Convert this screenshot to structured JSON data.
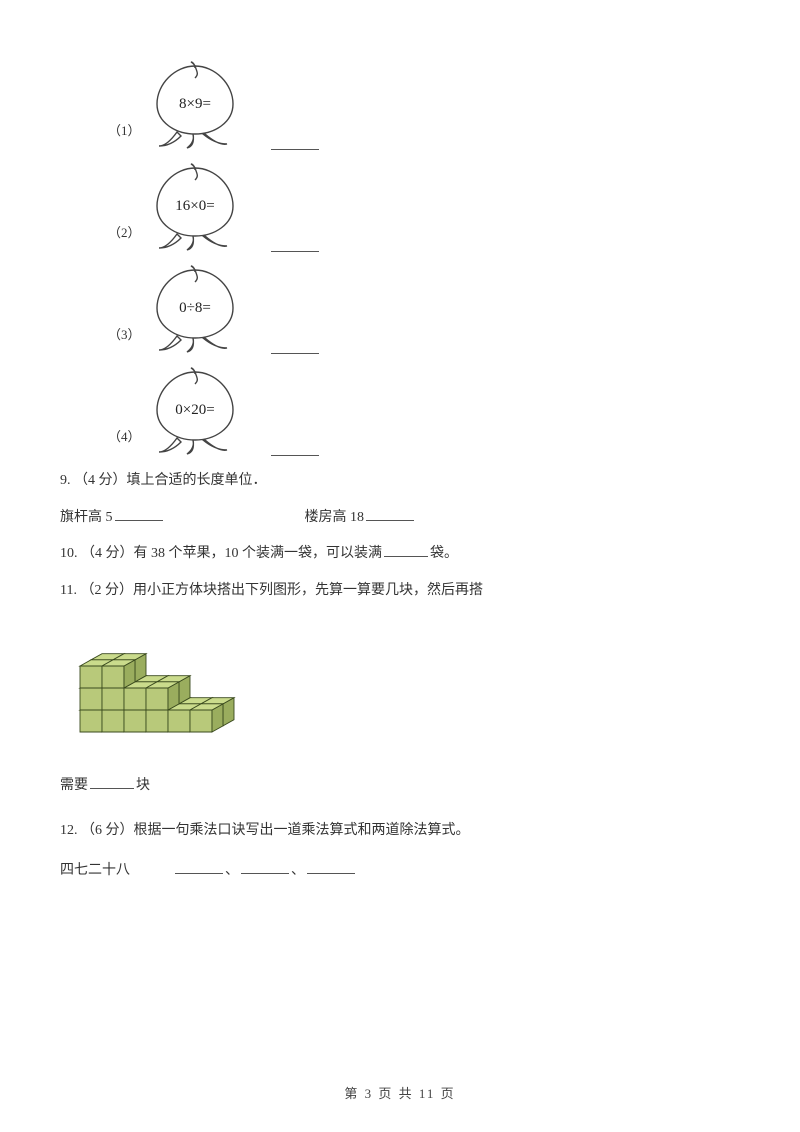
{
  "items": [
    {
      "num": "（1）",
      "expr": "8×9="
    },
    {
      "num": "（2）",
      "expr": "16×0="
    },
    {
      "num": "（3）",
      "expr": "0÷8="
    },
    {
      "num": "（4）",
      "expr": "0×20="
    }
  ],
  "q9": {
    "label": "9.  （4 分）填上合适的长度单位．",
    "left": "旗杆高 5",
    "right": "楼房高 18"
  },
  "q10": {
    "prefix": "10.  （4 分）有 38 个苹果，10 个装满一袋，可以装满",
    "suffix": "袋。"
  },
  "q11": {
    "label": "11.  （2 分）用小正方体块搭出下列图形，先算一算要几块，然后再搭",
    "need_prefix": "需要",
    "need_suffix": "块"
  },
  "q12": {
    "label": "12.  （6 分）根据一句乘法口诀写出一道乘法算式和两道除法算式。",
    "phrase": "四七二十八"
  },
  "footer": "第 3 页 共 11 页",
  "peach_style": {
    "stroke": "#444444",
    "stroke_width": 1.4,
    "fill": "#ffffff",
    "font_family": "serif",
    "font_size": 15
  },
  "cubes": {
    "face_fill": "#b8c97a",
    "face_stroke": "#3a4a1e",
    "shade_top": "#cadb8c",
    "shade_side": "#9aad5e",
    "unit": 22,
    "layout_bottom": [
      [
        0,
        0
      ],
      [
        1,
        0
      ],
      [
        2,
        0
      ],
      [
        3,
        0
      ],
      [
        4,
        0
      ],
      [
        5,
        0
      ],
      [
        0,
        1
      ],
      [
        1,
        1
      ],
      [
        2,
        1
      ],
      [
        3,
        1
      ],
      [
        4,
        1
      ],
      [
        5,
        1
      ]
    ],
    "layout_mid": [
      [
        0,
        0
      ],
      [
        1,
        0
      ],
      [
        2,
        0
      ],
      [
        3,
        0
      ],
      [
        0,
        1
      ],
      [
        1,
        1
      ],
      [
        2,
        1
      ],
      [
        3,
        1
      ]
    ],
    "layout_top": [
      [
        0,
        0
      ],
      [
        1,
        0
      ],
      [
        0,
        1
      ],
      [
        1,
        1
      ]
    ]
  }
}
